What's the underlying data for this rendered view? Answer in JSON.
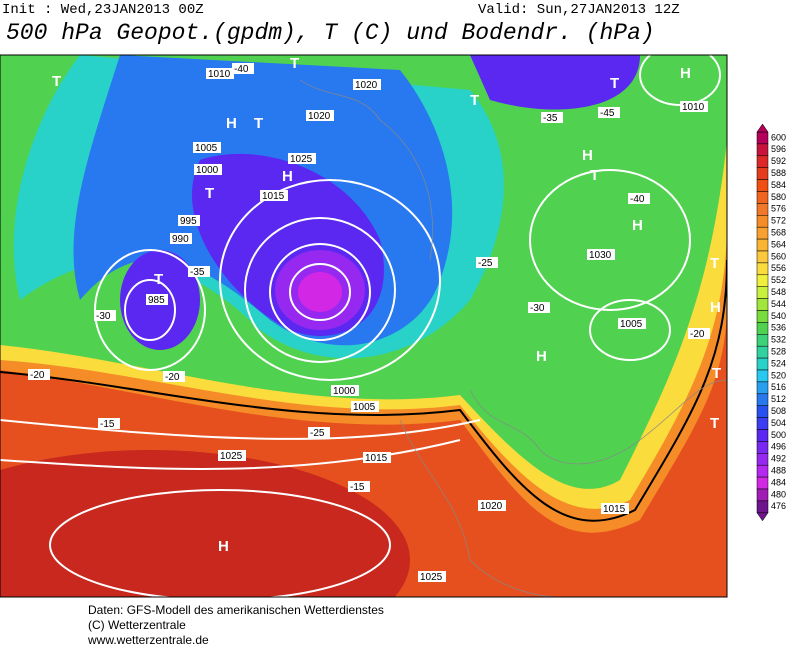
{
  "header": {
    "init": "Init : Wed,23JAN2013 00Z",
    "valid": "Valid: Sun,27JAN2013 12Z",
    "title": "500 hPa Geopot.(gpdm), T (C) und Bodendr. (hPa)"
  },
  "colorbar": {
    "labels": [
      600,
      596,
      592,
      588,
      584,
      580,
      576,
      572,
      568,
      564,
      560,
      556,
      552,
      548,
      544,
      540,
      536,
      532,
      528,
      524,
      520,
      516,
      512,
      508,
      504,
      500,
      496,
      492,
      488,
      484,
      480,
      476
    ]
  },
  "map_labels": [
    "T",
    "H",
    "T",
    "T",
    "H",
    "T",
    "T",
    "H",
    "T",
    "H",
    "H",
    "T",
    "H",
    "T",
    "T",
    "H",
    "T",
    "H",
    "H",
    "T",
    "1020",
    "1010",
    "1005",
    "1000",
    "995",
    "990",
    "985",
    "1025",
    "1015",
    "1030",
    "1005",
    "1010",
    "1000",
    "1005",
    "1020",
    "1015",
    "1025",
    "1020",
    "1015",
    "1025",
    "-40",
    "-35",
    "-30",
    "-25",
    "-20",
    "-15",
    "-35",
    "-40",
    "-45",
    "-25",
    "-20",
    "-15",
    "-30",
    "-20"
  ],
  "footer": {
    "line1": "Daten: GFS-Modell des amerikanischen Wetterdienstes",
    "line2": "(C) Wetterzentrale",
    "line3": "www.wetterzentrale.de"
  }
}
